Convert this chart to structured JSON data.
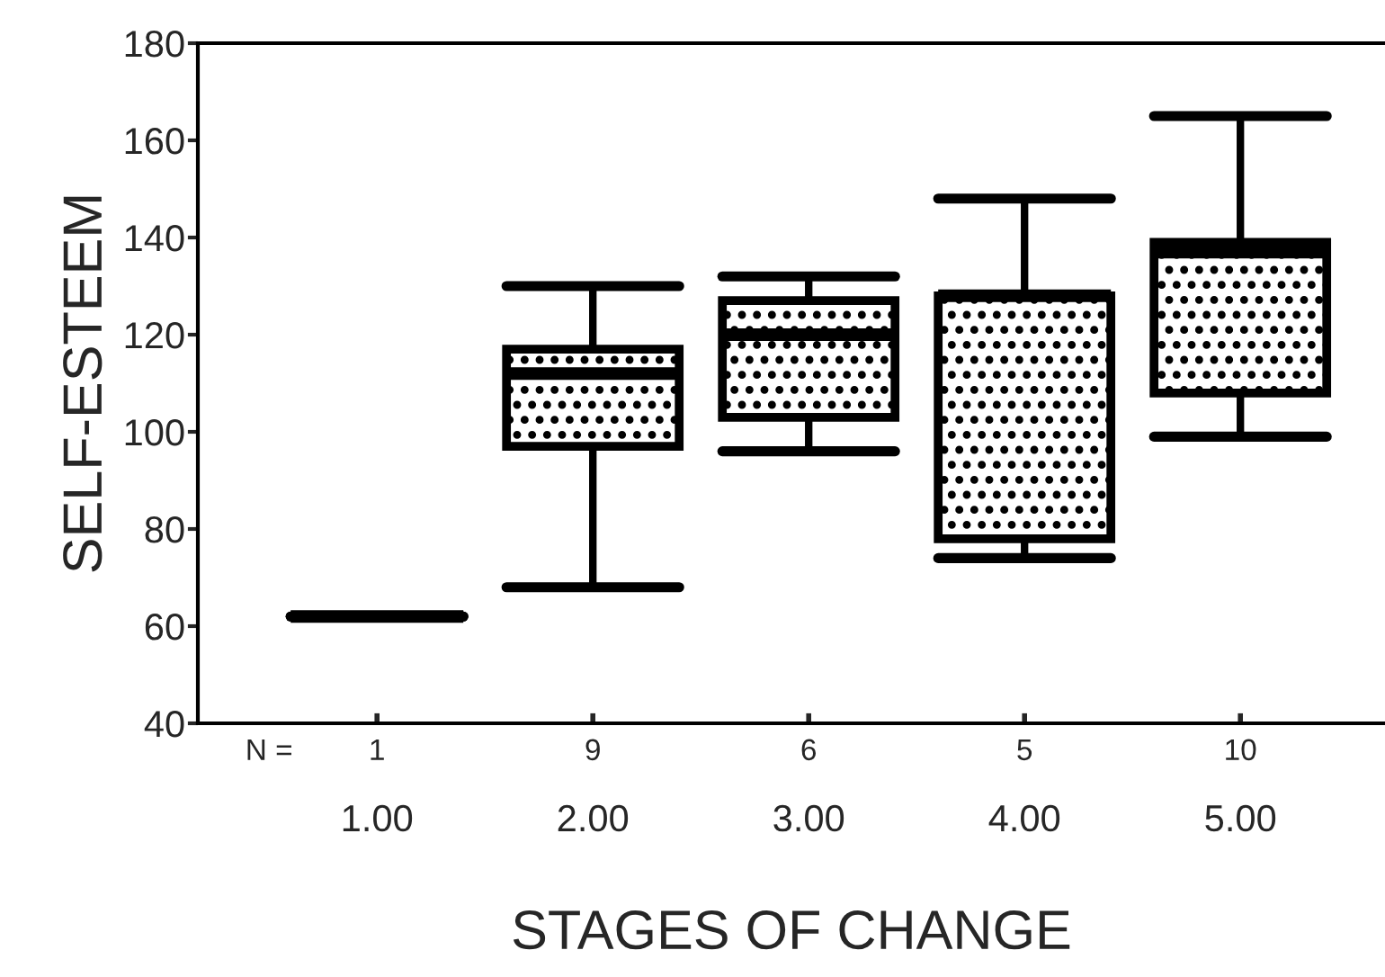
{
  "chart_data": {
    "type": "box",
    "xlabel": "STAGES OF CHANGE",
    "ylabel": "SELF-ESTEEM",
    "categories": [
      "1.00",
      "2.00",
      "3.00",
      "4.00",
      "5.00"
    ],
    "boxes": [
      {
        "low": 62,
        "q1": 62,
        "median": 62,
        "q3": 62,
        "high": 62
      },
      {
        "low": 68,
        "q1": 97,
        "median": 112,
        "q3": 117,
        "high": 130
      },
      {
        "low": 96,
        "q1": 103,
        "median": 120,
        "q3": 127,
        "high": 132
      },
      {
        "low": 74,
        "q1": 78,
        "median": 128,
        "q3": 128,
        "high": 148
      },
      {
        "low": 99,
        "q1": 108,
        "median": 137,
        "q3": 139,
        "high": 165
      }
    ],
    "ylim": [
      40,
      180
    ],
    "yticks": [
      40,
      60,
      80,
      100,
      120,
      140,
      160,
      180
    ],
    "annotations": [
      "N =",
      "1",
      "9",
      "6",
      "5",
      "10"
    ],
    "grid": false,
    "legend": false
  }
}
